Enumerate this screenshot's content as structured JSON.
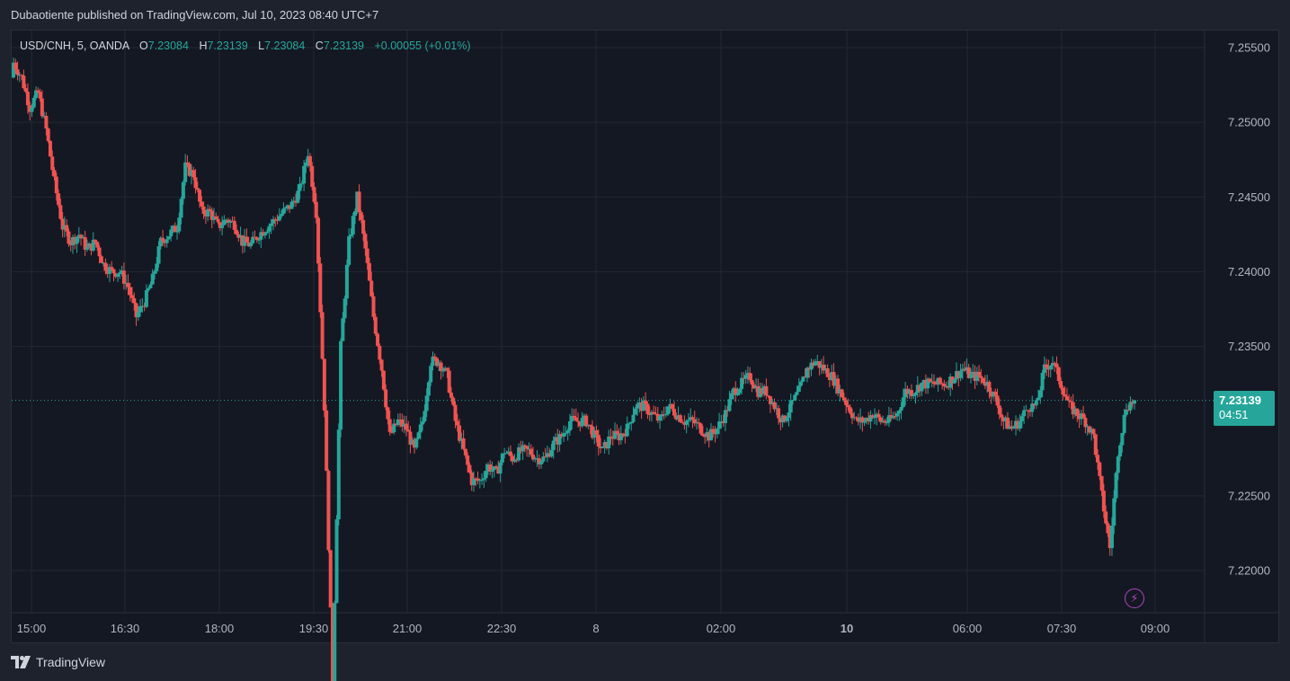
{
  "publish_line": "Dubaotiente published on TradingView.com, Jul 10, 2023 08:40 UTC+7",
  "legend": {
    "symbol": "USD/CNH, 5, OANDA",
    "o_label": "O",
    "o": "7.23084",
    "h_label": "H",
    "h": "7.23139",
    "l_label": "L",
    "l": "7.23084",
    "c_label": "C",
    "c": "7.23139",
    "change": "+0.00055 (+0.01%)"
  },
  "price_tag": {
    "price": "7.23139",
    "countdown": "04:51"
  },
  "footer": {
    "brand": "TradingView"
  },
  "colors": {
    "up": "#26a69a",
    "down": "#ef5350",
    "bg": "#141823",
    "grid": "#232733"
  },
  "chart_data": {
    "type": "candlestick",
    "symbol": "USD/CNH",
    "interval": "5",
    "y_ticks": [
      "7.25500",
      "7.25000",
      "7.24500",
      "7.24000",
      "7.23500",
      "7.23139",
      "7.22500",
      "7.22000"
    ],
    "x_ticks": [
      "15:00",
      "16:30",
      "18:00",
      "19:30",
      "21:00",
      "22:30",
      "8",
      "02:00",
      "10",
      "06:00",
      "07:30",
      "09:00"
    ],
    "ylim": [
      7.2175,
      7.2575
    ],
    "last_price": 7.23139,
    "close_path": [
      7.254,
      7.253,
      7.251,
      7.252,
      7.2495,
      7.246,
      7.243,
      7.242,
      7.2425,
      7.2415,
      7.242,
      7.2405,
      7.24,
      7.24,
      7.239,
      7.237,
      7.238,
      7.2395,
      7.242,
      7.2425,
      7.243,
      7.247,
      7.2465,
      7.244,
      7.244,
      7.243,
      7.2435,
      7.2432,
      7.242,
      7.2418,
      7.2425,
      7.243,
      7.2435,
      7.244,
      7.2445,
      7.2455,
      7.248,
      7.244,
      7.231,
      7.2125,
      7.235,
      7.242,
      7.245,
      7.2415,
      7.237,
      7.2335,
      7.229,
      7.23,
      7.2295,
      7.228,
      7.23,
      7.234,
      7.234,
      7.233,
      7.23,
      7.228,
      7.226,
      7.226,
      7.227,
      7.2265,
      7.228,
      7.2275,
      7.228,
      7.228,
      7.2275,
      7.2275,
      7.2285,
      7.229,
      7.23,
      7.23,
      7.23,
      7.229,
      7.228,
      7.229,
      7.229,
      7.2295,
      7.231,
      7.231,
      7.2305,
      7.23,
      7.231,
      7.2305,
      7.23,
      7.23,
      7.2295,
      7.229,
      7.2295,
      7.2305,
      7.232,
      7.2325,
      7.233,
      7.232,
      7.232,
      7.231,
      7.23,
      7.231,
      7.232,
      7.2335,
      7.234,
      7.2335,
      7.233,
      7.232,
      7.231,
      7.23,
      7.23,
      7.2305,
      7.23,
      7.23,
      7.2305,
      7.232,
      7.232,
      7.2325,
      7.2325,
      7.2325,
      7.2325,
      7.233,
      7.2335,
      7.233,
      7.233,
      7.2325,
      7.2315,
      7.23,
      7.2295,
      7.23,
      7.231,
      7.231,
      7.2335,
      7.234,
      7.2325,
      7.231,
      7.2305,
      7.23,
      7.229,
      7.225,
      7.2215,
      7.228,
      7.231,
      7.23139
    ]
  }
}
